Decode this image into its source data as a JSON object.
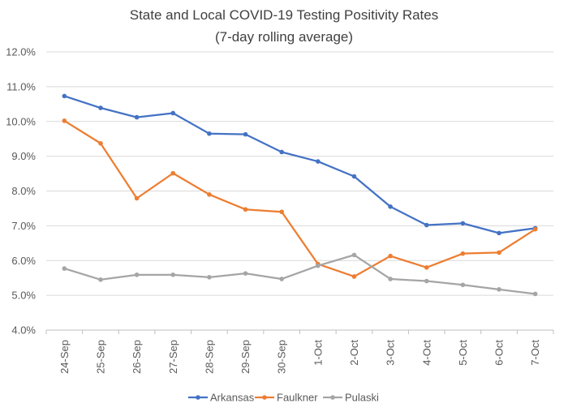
{
  "chart_data": {
    "type": "line",
    "title": "State and Local COVID-19 Testing Positivity Rates",
    "subtitle": "(7-day rolling average)",
    "categories": [
      "24-Sep",
      "25-Sep",
      "26-Sep",
      "27-Sep",
      "28-Sep",
      "29-Sep",
      "30-Sep",
      "1-Oct",
      "2-Oct",
      "3-Oct",
      "4-Oct",
      "5-Oct",
      "6-Oct",
      "7-Oct"
    ],
    "ylim": [
      4.0,
      12.0
    ],
    "yticks": [
      4.0,
      5.0,
      6.0,
      7.0,
      8.0,
      9.0,
      10.0,
      11.0,
      12.0
    ],
    "ytick_labels": [
      "4.0%",
      "5.0%",
      "6.0%",
      "7.0%",
      "8.0%",
      "9.0%",
      "10.0%",
      "11.0%",
      "12.0%"
    ],
    "grid": true,
    "legend_position": "bottom",
    "series": [
      {
        "name": "Arkansas",
        "color": "#4472C4",
        "values": [
          10.73,
          10.39,
          10.12,
          10.24,
          9.65,
          9.63,
          9.12,
          8.85,
          8.42,
          7.55,
          7.02,
          7.07,
          6.79,
          6.93
        ]
      },
      {
        "name": "Faulkner",
        "color": "#ED7D31",
        "values": [
          10.02,
          9.37,
          7.79,
          8.51,
          7.9,
          7.47,
          7.4,
          5.9,
          5.54,
          6.13,
          5.8,
          6.2,
          6.23,
          6.9
        ]
      },
      {
        "name": "Pulaski",
        "color": "#A5A5A5",
        "values": [
          5.77,
          5.45,
          5.59,
          5.59,
          5.52,
          5.63,
          5.47,
          5.85,
          6.16,
          5.47,
          5.41,
          5.3,
          5.17,
          5.04
        ]
      }
    ]
  }
}
